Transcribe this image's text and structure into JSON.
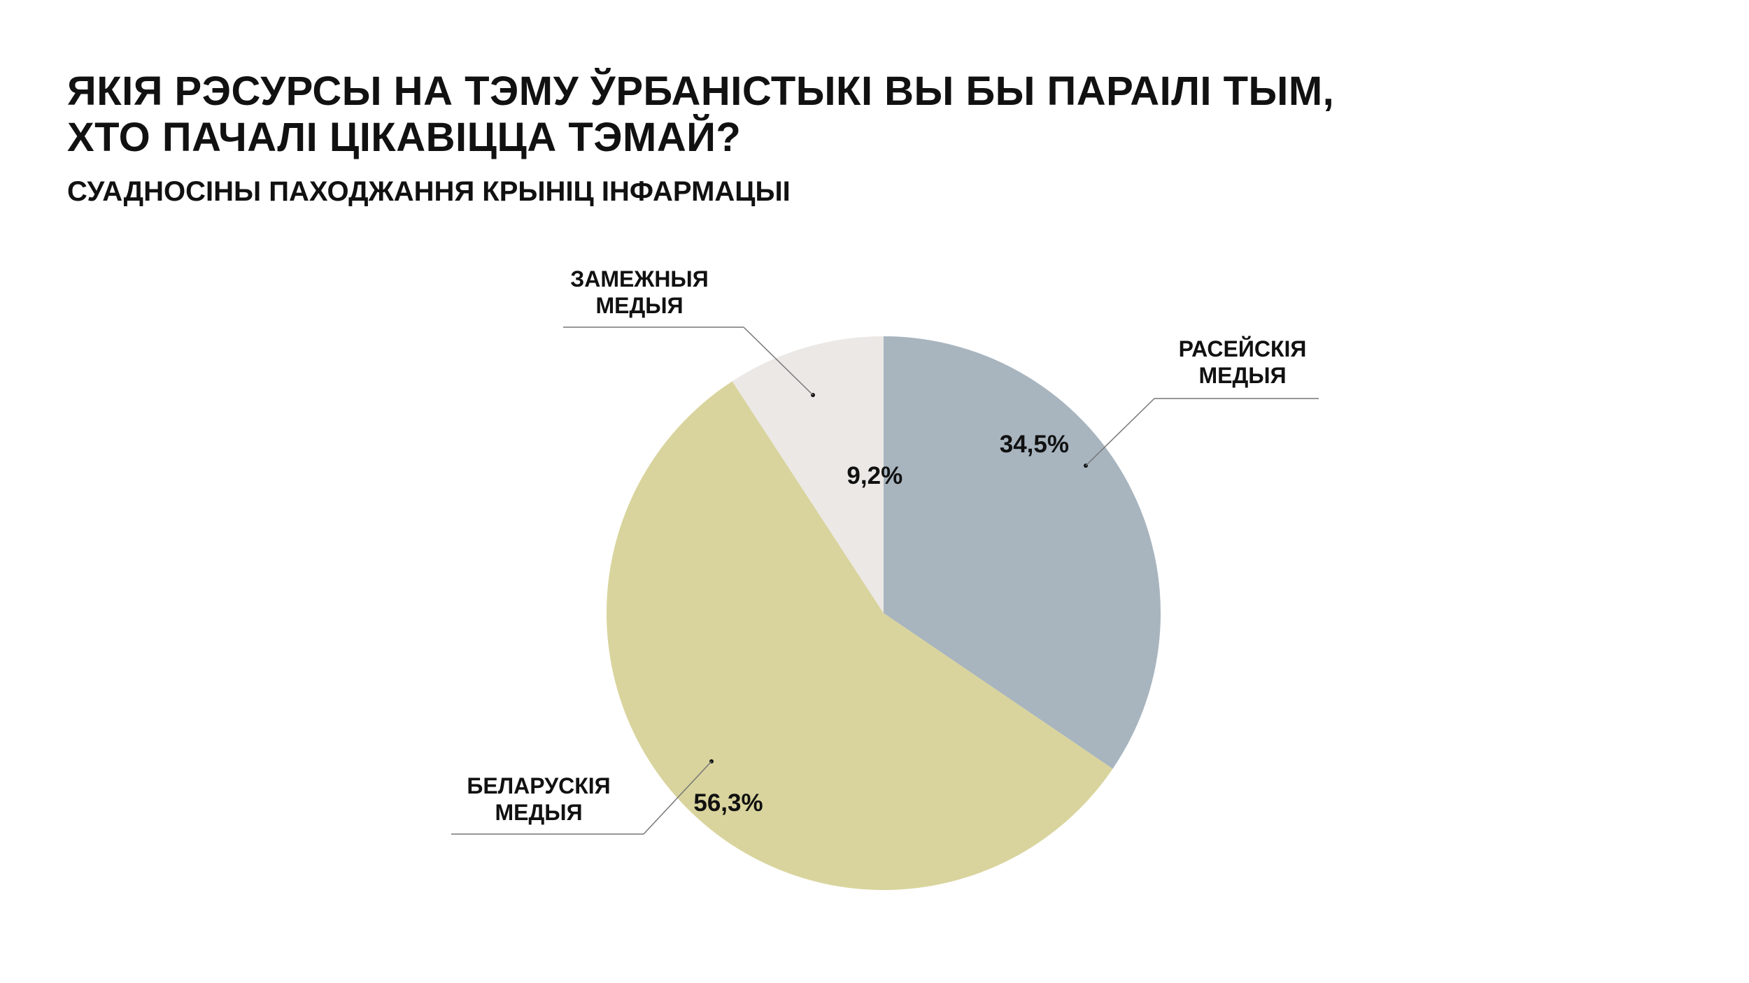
{
  "chart_data": {
    "type": "pie",
    "title": "ЯКІЯ РЭСУРСЫ НА ТЭМУ ЎРБАНІСТЫКІ ВЫ БЫ ПАРАІЛІ ТЫМ, ХТО ПАЧАЛІ ЦІКАВІЦЦА ТЭМАЙ?",
    "title_lines": [
      "ЯКІЯ РЭСУРСЫ НА ТЭМУ ЎРБАНІСТЫКІ ВЫ БЫ ПАРАІЛІ ТЫМ,",
      "ХТО ПАЧАЛІ ЦІКАВІЦЦА ТЭМАЙ?"
    ],
    "subtitle": "СУАДНОСІНЫ ПАХОДЖАННЯ КРЫНІЦ ІНФАРМАЦЫІ",
    "start": "top, clockwise",
    "slices": [
      {
        "label_lines": [
          "РАСЕЙСКІЯ",
          "МЕДЫЯ"
        ],
        "value": 34.5,
        "value_label": "34,5%",
        "color": "#a8b5bf"
      },
      {
        "label_lines": [
          "БЕЛАРУСКІЯ",
          "МЕДЫЯ"
        ],
        "value": 56.3,
        "value_label": "56,3%",
        "color": "#d9d49d"
      },
      {
        "label_lines": [
          "ЗАМЕЖНЫЯ",
          "МЕДЫЯ"
        ],
        "value": 9.2,
        "value_label": "9,2%",
        "color": "#ebe8e5"
      }
    ]
  }
}
